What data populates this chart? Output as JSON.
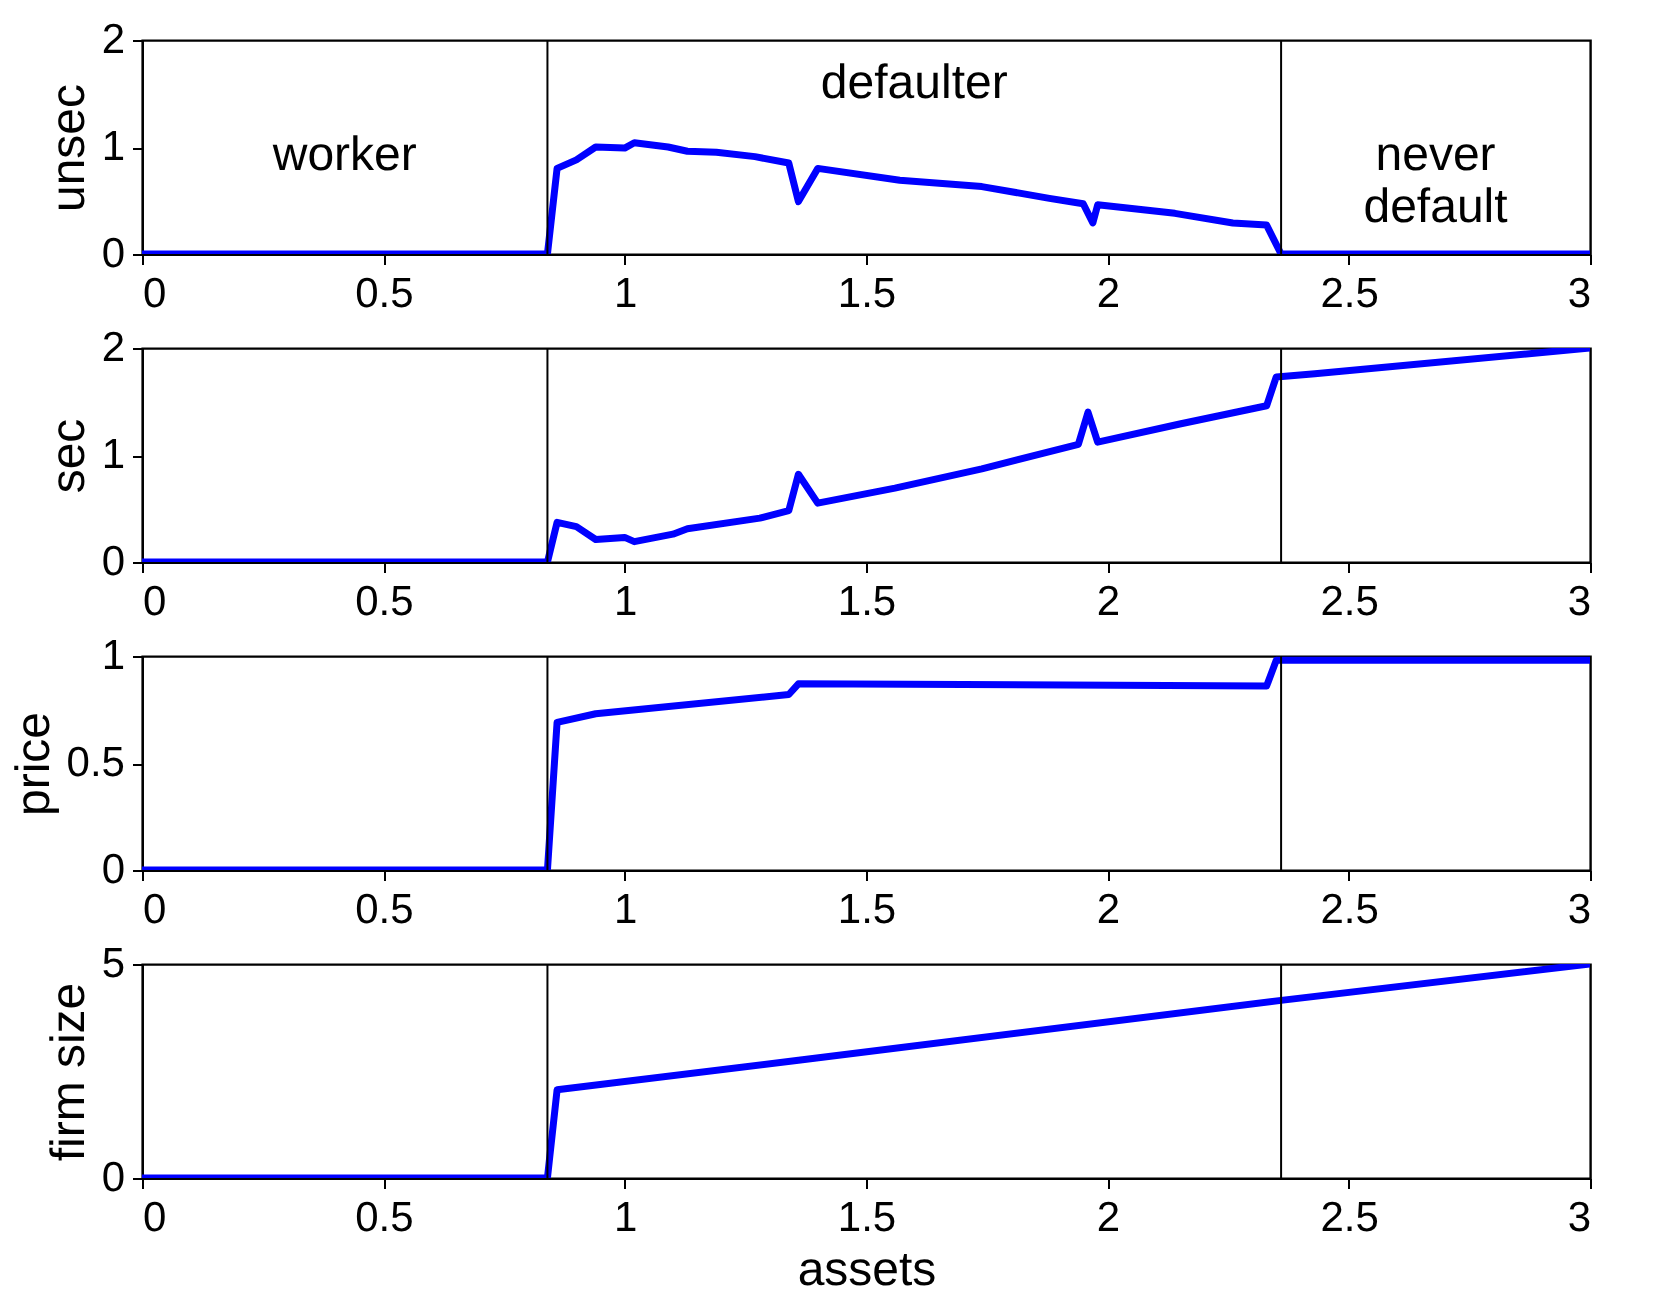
{
  "chart_data": [
    {
      "type": "line",
      "ylabel": "unsec",
      "color": "#0000ff",
      "xlim": [
        0,
        3
      ],
      "xticks": [
        0,
        0.5,
        1,
        1.5,
        2,
        2.5,
        3
      ],
      "ylim": [
        0,
        2
      ],
      "yticks": [
        0,
        1,
        2
      ],
      "x": [
        0,
        0.84,
        0.86,
        0.9,
        0.94,
        1.0,
        1.02,
        1.09,
        1.13,
        1.19,
        1.27,
        1.34,
        1.36,
        1.4,
        1.57,
        1.74,
        1.88,
        1.95,
        1.97,
        1.98,
        2.14,
        2.26,
        2.33,
        2.36,
        3
      ],
      "values": [
        0,
        0,
        0.8,
        0.88,
        1.0,
        0.99,
        1.04,
        1.0,
        0.96,
        0.95,
        0.91,
        0.85,
        0.49,
        0.8,
        0.69,
        0.63,
        0.52,
        0.47,
        0.29,
        0.46,
        0.38,
        0.29,
        0.27,
        0,
        0
      ],
      "ref_lines": [
        {
          "axis": "x",
          "value": 0.84
        },
        {
          "axis": "x",
          "value": 2.36
        }
      ],
      "annotations": [
        "worker",
        "defaulter",
        "never default"
      ]
    },
    {
      "type": "line",
      "ylabel": "sec",
      "color": "#0000ff",
      "xlim": [
        0,
        3
      ],
      "xticks": [
        0,
        0.5,
        1,
        1.5,
        2,
        2.5,
        3
      ],
      "ylim": [
        0,
        2
      ],
      "yticks": [
        0,
        1,
        2
      ],
      "x": [
        0,
        0.84,
        0.86,
        0.9,
        0.94,
        1.0,
        1.02,
        1.1,
        1.13,
        1.28,
        1.34,
        1.36,
        1.4,
        1.56,
        1.74,
        1.94,
        1.96,
        1.98,
        2.15,
        2.33,
        2.35,
        2.43,
        3
      ],
      "values": [
        0,
        0,
        0.37,
        0.33,
        0.21,
        0.23,
        0.19,
        0.26,
        0.31,
        0.41,
        0.48,
        0.82,
        0.55,
        0.69,
        0.87,
        1.1,
        1.4,
        1.12,
        1.29,
        1.46,
        1.73,
        1.76,
        2.0
      ],
      "ref_lines": [
        {
          "axis": "x",
          "value": 0.84
        },
        {
          "axis": "x",
          "value": 2.36
        }
      ]
    },
    {
      "type": "line",
      "ylabel": "price",
      "color": "#0000ff",
      "xlim": [
        0,
        3
      ],
      "xticks": [
        0,
        0.5,
        1,
        1.5,
        2,
        2.5,
        3
      ],
      "ylim": [
        0,
        1
      ],
      "yticks": [
        0,
        0.5,
        1
      ],
      "x": [
        0,
        0.84,
        0.86,
        0.94,
        1.34,
        1.36,
        2.33,
        2.35,
        3
      ],
      "values": [
        0,
        0,
        0.69,
        0.73,
        0.82,
        0.87,
        0.86,
        0.98,
        0.98
      ],
      "ref_lines": [
        {
          "axis": "x",
          "value": 0.84
        },
        {
          "axis": "x",
          "value": 2.36
        }
      ]
    },
    {
      "type": "line",
      "ylabel": "firm size",
      "xlabel": "assets",
      "color": "#0000ff",
      "xlim": [
        0,
        3
      ],
      "xticks": [
        0,
        0.5,
        1,
        1.5,
        2,
        2.5,
        3
      ],
      "ylim": [
        0,
        5
      ],
      "yticks": [
        0,
        5
      ],
      "x": [
        0,
        0.84,
        0.86,
        1.36,
        2.36,
        3
      ],
      "values": [
        0,
        0,
        2.06,
        2.75,
        4.15,
        5.0
      ],
      "ref_lines": [
        {
          "axis": "x",
          "value": 0.84
        },
        {
          "axis": "x",
          "value": 2.36
        }
      ]
    }
  ]
}
